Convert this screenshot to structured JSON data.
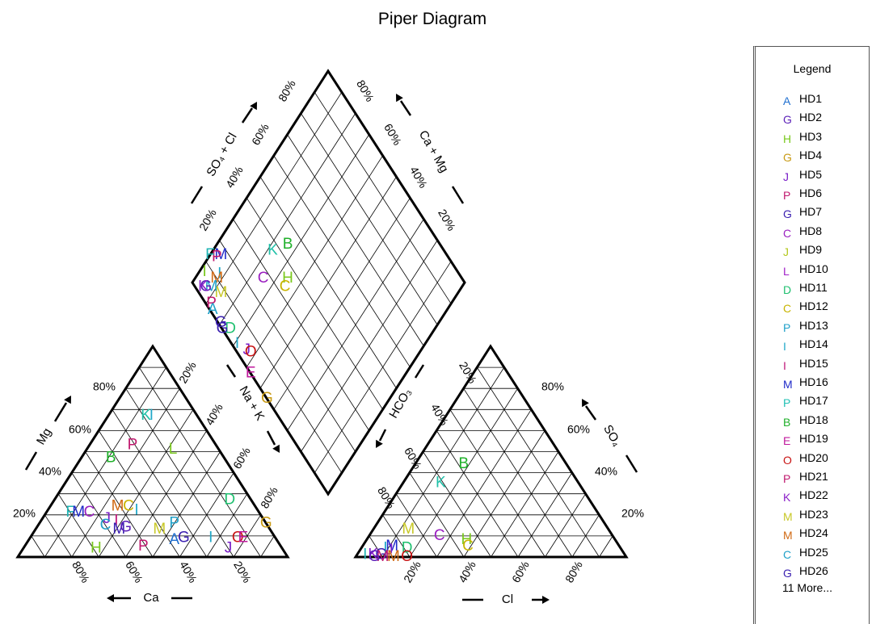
{
  "title": "Piper Diagram",
  "colors": {
    "A": "#1f6fd0",
    "B": "#1fb02a",
    "C": "#c8b400",
    "D": "#20c070",
    "E": "#c0189c",
    "G": "#3a1fb0",
    "H": "#7ac81e",
    "I": "#20a8c8",
    "J": "#7a1fc8",
    "K": "#20c0a8",
    "L": "#a01fb0",
    "M": "#c8b428",
    "O": "#c81414",
    "P": "#c0186e",
    "F": "#20b4b4"
  },
  "legend": {
    "title": "Legend",
    "items": [
      {
        "symbol": "A",
        "label": "HD1",
        "color": "#1f6fd0"
      },
      {
        "symbol": "G",
        "label": "HD2",
        "color": "#5b1fb8"
      },
      {
        "symbol": "H",
        "label": "HD3",
        "color": "#7ac81e"
      },
      {
        "symbol": "G",
        "label": "HD4",
        "color": "#c89a14"
      },
      {
        "symbol": "J",
        "label": "HD5",
        "color": "#7a1fc8"
      },
      {
        "symbol": "P",
        "label": "HD6",
        "color": "#c0186e"
      },
      {
        "symbol": "G",
        "label": "HD7",
        "color": "#3a1fb0"
      },
      {
        "symbol": "C",
        "label": "HD8",
        "color": "#9a1fc0"
      },
      {
        "symbol": "J",
        "label": "HD9",
        "color": "#b4c81e"
      },
      {
        "symbol": "L",
        "label": "HD10",
        "color": "#a01fc8"
      },
      {
        "symbol": "D",
        "label": "HD11",
        "color": "#20c070"
      },
      {
        "symbol": "C",
        "label": "HD12",
        "color": "#c8b400"
      },
      {
        "symbol": "P",
        "label": "HD13",
        "color": "#20a0c8"
      },
      {
        "symbol": "I",
        "label": "HD14",
        "color": "#20a8c8"
      },
      {
        "symbol": "I",
        "label": "HD15",
        "color": "#c0187a"
      },
      {
        "symbol": "M",
        "label": "HD16",
        "color": "#1f2ac8"
      },
      {
        "symbol": "P",
        "label": "HD17",
        "color": "#20c0b4"
      },
      {
        "symbol": "B",
        "label": "HD18",
        "color": "#1fb02a"
      },
      {
        "symbol": "E",
        "label": "HD19",
        "color": "#c0189c"
      },
      {
        "symbol": "O",
        "label": "HD20",
        "color": "#c81414"
      },
      {
        "symbol": "P",
        "label": "HD21",
        "color": "#c0186e"
      },
      {
        "symbol": "K",
        "label": "HD22",
        "color": "#8a1fc8"
      },
      {
        "symbol": "M",
        "label": "HD23",
        "color": "#c8c828"
      },
      {
        "symbol": "M",
        "label": "HD24",
        "color": "#d06a14"
      },
      {
        "symbol": "C",
        "label": "HD25",
        "color": "#20a0c8"
      },
      {
        "symbol": "G",
        "label": "HD26",
        "color": "#3a1fb0"
      }
    ],
    "more": "11 More..."
  },
  "chart_data": {
    "type": "scatter",
    "subtype": "piper",
    "title": "Piper Diagram",
    "axes": {
      "cation_bottom": "Ca",
      "cation_left": "Mg",
      "cation_right": "Na + K",
      "anion_bottom": "Cl",
      "anion_right": "SO₄",
      "anion_left": "HCO₃",
      "diamond_upper_left": "SO₄ + Cl",
      "diamond_upper_right": "Ca + Mg"
    },
    "tick_labels": [
      "20%",
      "40%",
      "60%",
      "80%"
    ],
    "cation_points": [
      {
        "sym": "K",
        "ca": 19,
        "mg": 67,
        "color": "#20c0a8"
      },
      {
        "sym": "I",
        "ca": 17,
        "mg": 67,
        "color": "#20a8c8"
      },
      {
        "sym": "P",
        "ca": 31,
        "mg": 53,
        "color": "#c0186e"
      },
      {
        "sym": "L",
        "ca": 17,
        "mg": 51,
        "color": "#7ac81e"
      },
      {
        "sym": "B",
        "ca": 42,
        "mg": 47,
        "color": "#1fb02a"
      },
      {
        "sym": "D",
        "ca": 8,
        "mg": 27,
        "color": "#20c070"
      },
      {
        "sym": "F",
        "ca": 70,
        "mg": 21,
        "color": "#20b4b4"
      },
      {
        "sym": "M",
        "ca": 67,
        "mg": 21,
        "color": "#1f2ac8"
      },
      {
        "sym": "C",
        "ca": 63,
        "mg": 21,
        "color": "#9a1fc0"
      },
      {
        "sym": "M",
        "ca": 51,
        "mg": 24,
        "color": "#d06a14"
      },
      {
        "sym": "C",
        "ca": 47,
        "mg": 24,
        "color": "#c8b400"
      },
      {
        "sym": "I",
        "ca": 45,
        "mg": 22,
        "color": "#20a8c8"
      },
      {
        "sym": "J",
        "ca": 58,
        "mg": 18,
        "color": "#7a1fc8"
      },
      {
        "sym": "I",
        "ca": 55,
        "mg": 17,
        "color": "#c0187a"
      },
      {
        "sym": "P",
        "ca": 34,
        "mg": 16,
        "color": "#20a0c8"
      },
      {
        "sym": "C",
        "ca": 60,
        "mg": 15,
        "color": "#20a0c8"
      },
      {
        "sym": "M",
        "ca": 56,
        "mg": 13,
        "color": "#3a1fb0"
      },
      {
        "sym": "G",
        "ca": 53,
        "mg": 14,
        "color": "#5b1fb8"
      },
      {
        "sym": "M",
        "ca": 41,
        "mg": 13,
        "color": "#c8c828"
      },
      {
        "sym": "A",
        "ca": 38,
        "mg": 8,
        "color": "#1f6fd0"
      },
      {
        "sym": "G",
        "ca": 34,
        "mg": 9,
        "color": "#3a1fb0"
      },
      {
        "sym": "H",
        "ca": 69,
        "mg": 4,
        "color": "#7ac81e"
      },
      {
        "sym": "P",
        "ca": 51,
        "mg": 5,
        "color": "#c0186e"
      },
      {
        "sym": "I",
        "ca": 24,
        "mg": 9,
        "color": "#20a8c8"
      },
      {
        "sym": "J",
        "ca": 20,
        "mg": 4,
        "color": "#7a1fc8"
      },
      {
        "sym": "O",
        "ca": 14,
        "mg": 9,
        "color": "#c81414"
      },
      {
        "sym": "E",
        "ca": 12,
        "mg": 9,
        "color": "#c0189c"
      },
      {
        "sym": "G",
        "ca": 0,
        "mg": 16,
        "color": "#c89a14"
      }
    ],
    "anion_points": [
      {
        "sym": "B",
        "cl": 18,
        "so4": 44,
        "color": "#1fb02a"
      },
      {
        "sym": "K",
        "cl": 14,
        "so4": 35,
        "color": "#20c0a8"
      },
      {
        "sym": "M",
        "cl": 13,
        "so4": 13,
        "color": "#c8c828"
      },
      {
        "sym": "C",
        "cl": 26,
        "so4": 10,
        "color": "#9a1fc0"
      },
      {
        "sym": "H",
        "cl": 37,
        "so4": 8,
        "color": "#7ac81e"
      },
      {
        "sym": "C",
        "cl": 39,
        "so4": 5,
        "color": "#c8b400"
      },
      {
        "sym": "D",
        "cl": 17,
        "so4": 4,
        "color": "#20c070"
      },
      {
        "sym": "O",
        "cl": 19,
        "so4": 0,
        "color": "#c81414"
      },
      {
        "sym": "M",
        "cl": 11,
        "so4": 5,
        "color": "#1f2ac8"
      },
      {
        "sym": "J",
        "cl": 11,
        "so4": 3,
        "color": "#7a1fc8"
      },
      {
        "sym": "I",
        "cl": 9,
        "so4": 4,
        "color": "#20a8c8"
      },
      {
        "sym": "G",
        "cl": 9,
        "so4": 1,
        "color": "#3a1fb0"
      },
      {
        "sym": "K",
        "cl": 6,
        "so4": 1,
        "color": "#8a1fc8"
      },
      {
        "sym": "M",
        "cl": 10,
        "so4": 0,
        "color": "#c0186e"
      },
      {
        "sym": "I",
        "cl": 3,
        "so4": 1,
        "color": "#20b4b4"
      },
      {
        "sym": "G",
        "cl": 7,
        "so4": 0,
        "color": "#5b1fb8"
      },
      {
        "sym": "M",
        "cl": 14,
        "so4": 0,
        "color": "#d06a14"
      }
    ],
    "diamond_points": [
      {
        "sym": "B",
        "so4cl": 44,
        "camg": 74,
        "color": "#1fb02a"
      },
      {
        "sym": "K",
        "so4cl": 37,
        "camg": 78,
        "color": "#20c0a8"
      },
      {
        "sym": "H",
        "so4cl": 36,
        "camg": 66,
        "color": "#7ac81e"
      },
      {
        "sym": "C",
        "so4cl": 33,
        "camg": 65,
        "color": "#c8b400"
      },
      {
        "sym": "C",
        "so4cl": 27,
        "camg": 75,
        "color": "#9a1fc0"
      },
      {
        "sym": "M",
        "so4cl": 17,
        "camg": 96,
        "color": "#1f2ac8"
      },
      {
        "sym": "P",
        "so4cl": 15,
        "camg": 97,
        "color": "#c0186e"
      },
      {
        "sym": "F",
        "so4cl": 13,
        "camg": 100,
        "color": "#20b4b4"
      },
      {
        "sym": "I",
        "so4cl": 12,
        "camg": 92,
        "color": "#20a8c8"
      },
      {
        "sym": "M",
        "so4cl": 10,
        "camg": 92,
        "color": "#d06a14"
      },
      {
        "sym": "I",
        "so4cl": 7,
        "camg": 98,
        "color": "#7ac81e"
      },
      {
        "sym": "M",
        "so4cl": 8,
        "camg": 87,
        "color": "#c8c828"
      },
      {
        "sym": "M",
        "so4cl": 6,
        "camg": 92,
        "color": "#20a0c8"
      },
      {
        "sym": "G",
        "so4cl": 4,
        "camg": 94,
        "color": "#5b1fb8"
      },
      {
        "sym": "K",
        "so4cl": 3,
        "camg": 95,
        "color": "#8a1fc8"
      },
      {
        "sym": "D",
        "so4cl": 3,
        "camg": 75,
        "color": "#20c070"
      },
      {
        "sym": "P",
        "so4cl": 2,
        "camg": 88,
        "color": "#c0186e"
      },
      {
        "sym": "A",
        "so4cl": 1,
        "camg": 86,
        "color": "#20a0c8"
      },
      {
        "sym": "G",
        "so4cl": 1,
        "camg": 80,
        "color": "#3a1fb0"
      },
      {
        "sym": "G",
        "so4cl": 0,
        "camg": 78,
        "color": "#3a1fb0"
      },
      {
        "sym": "I",
        "so4cl": 2,
        "camg": 69,
        "color": "#20a8c8"
      },
      {
        "sym": "J",
        "so4cl": 4,
        "camg": 64,
        "color": "#7a1fc8"
      },
      {
        "sym": "O",
        "so4cl": 5,
        "camg": 62,
        "color": "#c81414"
      },
      {
        "sym": "E",
        "so4cl": 0,
        "camg": 57,
        "color": "#c0189c"
      },
      {
        "sym": "G",
        "so4cl": 0,
        "camg": 45,
        "color": "#c89a14"
      }
    ]
  }
}
